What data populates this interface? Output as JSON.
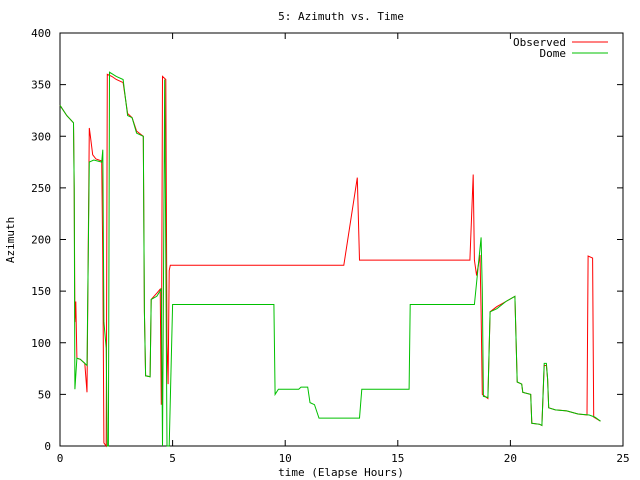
{
  "chart_data": {
    "type": "line",
    "title": "5: Azimuth vs. Time",
    "xlabel": "time (Elapse Hours)",
    "ylabel": "Azimuth",
    "xlim": [
      0,
      25
    ],
    "ylim": [
      0,
      400
    ],
    "xticks": [
      0,
      5,
      10,
      15,
      20,
      25
    ],
    "yticks": [
      0,
      50,
      100,
      150,
      200,
      250,
      300,
      350,
      400
    ],
    "grid": false,
    "legend_position": "top-right",
    "series": [
      {
        "name": "Observed",
        "color": "#ff0000",
        "points": [
          [
            0.0,
            330
          ],
          [
            0.3,
            320
          ],
          [
            0.6,
            313
          ],
          [
            0.63,
            250
          ],
          [
            0.66,
            120
          ],
          [
            0.7,
            140
          ],
          [
            0.75,
            85
          ],
          [
            0.9,
            84
          ],
          [
            1.1,
            80
          ],
          [
            1.2,
            52
          ],
          [
            1.3,
            308
          ],
          [
            1.35,
            300
          ],
          [
            1.45,
            282
          ],
          [
            1.6,
            278
          ],
          [
            1.85,
            276
          ],
          [
            1.9,
            180
          ],
          [
            1.95,
            3
          ],
          [
            2.05,
            0
          ],
          [
            2.1,
            360
          ],
          [
            2.3,
            358
          ],
          [
            2.5,
            355
          ],
          [
            2.8,
            352
          ],
          [
            3.0,
            322
          ],
          [
            3.2,
            318
          ],
          [
            3.4,
            305
          ],
          [
            3.7,
            300
          ],
          [
            3.75,
            130
          ],
          [
            3.8,
            68
          ],
          [
            4.0,
            67
          ],
          [
            4.05,
            142
          ],
          [
            4.3,
            148
          ],
          [
            4.45,
            152
          ],
          [
            4.5,
            40
          ],
          [
            4.55,
            358
          ],
          [
            4.7,
            355
          ],
          [
            4.75,
            100
          ],
          [
            4.8,
            60
          ],
          [
            4.85,
            170
          ],
          [
            4.9,
            175
          ],
          [
            5.2,
            175
          ],
          [
            8.0,
            175
          ],
          [
            10.0,
            175
          ],
          [
            12.6,
            175
          ],
          [
            13.2,
            260
          ],
          [
            13.3,
            180
          ],
          [
            15.0,
            180
          ],
          [
            18.2,
            180
          ],
          [
            18.35,
            263
          ],
          [
            18.4,
            180
          ],
          [
            18.5,
            165
          ],
          [
            18.65,
            185
          ],
          [
            18.7,
            130
          ],
          [
            18.75,
            50
          ],
          [
            19.0,
            46
          ],
          [
            19.1,
            130
          ],
          [
            19.4,
            135
          ],
          [
            19.8,
            140
          ],
          [
            20.2,
            145
          ],
          [
            20.3,
            62
          ],
          [
            20.5,
            60
          ],
          [
            20.55,
            52
          ],
          [
            20.9,
            50
          ],
          [
            20.95,
            22
          ],
          [
            21.3,
            21
          ],
          [
            21.4,
            20
          ],
          [
            21.5,
            78
          ],
          [
            21.6,
            78
          ],
          [
            21.65,
            65
          ],
          [
            21.7,
            37
          ],
          [
            22.0,
            35
          ],
          [
            22.5,
            34
          ],
          [
            23.0,
            31
          ],
          [
            23.4,
            30
          ],
          [
            23.45,
            184
          ],
          [
            23.65,
            182
          ],
          [
            23.7,
            28
          ],
          [
            24.0,
            24
          ]
        ]
      },
      {
        "name": "Dome",
        "color": "#00c000",
        "points": [
          [
            0.0,
            330
          ],
          [
            0.3,
            320
          ],
          [
            0.6,
            313
          ],
          [
            0.63,
            250
          ],
          [
            0.66,
            55
          ],
          [
            0.75,
            85
          ],
          [
            0.9,
            84
          ],
          [
            1.1,
            80
          ],
          [
            1.2,
            78
          ],
          [
            1.3,
            275
          ],
          [
            1.5,
            277
          ],
          [
            1.85,
            275
          ],
          [
            1.9,
            287
          ],
          [
            1.95,
            120
          ],
          [
            2.05,
            95
          ],
          [
            2.1,
            0
          ],
          [
            2.15,
            0
          ],
          [
            2.2,
            362
          ],
          [
            2.5,
            358
          ],
          [
            2.8,
            355
          ],
          [
            3.0,
            320
          ],
          [
            3.2,
            318
          ],
          [
            3.4,
            303
          ],
          [
            3.7,
            300
          ],
          [
            3.75,
            130
          ],
          [
            3.8,
            68
          ],
          [
            4.0,
            67
          ],
          [
            4.05,
            142
          ],
          [
            4.3,
            145
          ],
          [
            4.5,
            152
          ],
          [
            4.55,
            0
          ],
          [
            4.65,
            355
          ],
          [
            4.75,
            0
          ],
          [
            4.85,
            0
          ],
          [
            5.0,
            137
          ],
          [
            6.5,
            137
          ],
          [
            9.5,
            137
          ],
          [
            9.55,
            50
          ],
          [
            9.7,
            55
          ],
          [
            10.3,
            55
          ],
          [
            10.6,
            55
          ],
          [
            10.7,
            57
          ],
          [
            11.0,
            57
          ],
          [
            11.1,
            42
          ],
          [
            11.3,
            40
          ],
          [
            11.5,
            27
          ],
          [
            12.0,
            27
          ],
          [
            13.3,
            27
          ],
          [
            13.4,
            55
          ],
          [
            15.0,
            55
          ],
          [
            15.5,
            55
          ],
          [
            15.55,
            137
          ],
          [
            17.0,
            137
          ],
          [
            18.4,
            137
          ],
          [
            18.7,
            202
          ],
          [
            18.75,
            150
          ],
          [
            18.8,
            48
          ],
          [
            19.0,
            47
          ],
          [
            19.1,
            130
          ],
          [
            19.4,
            133
          ],
          [
            19.8,
            140
          ],
          [
            20.2,
            145
          ],
          [
            20.3,
            62
          ],
          [
            20.5,
            60
          ],
          [
            20.55,
            52
          ],
          [
            20.9,
            50
          ],
          [
            20.95,
            22
          ],
          [
            21.3,
            21
          ],
          [
            21.4,
            20
          ],
          [
            21.5,
            80
          ],
          [
            21.6,
            80
          ],
          [
            21.65,
            65
          ],
          [
            21.7,
            37
          ],
          [
            22.0,
            35
          ],
          [
            22.5,
            34
          ],
          [
            23.0,
            31
          ],
          [
            23.5,
            30
          ],
          [
            23.75,
            28
          ],
          [
            24.0,
            24
          ]
        ]
      }
    ]
  }
}
